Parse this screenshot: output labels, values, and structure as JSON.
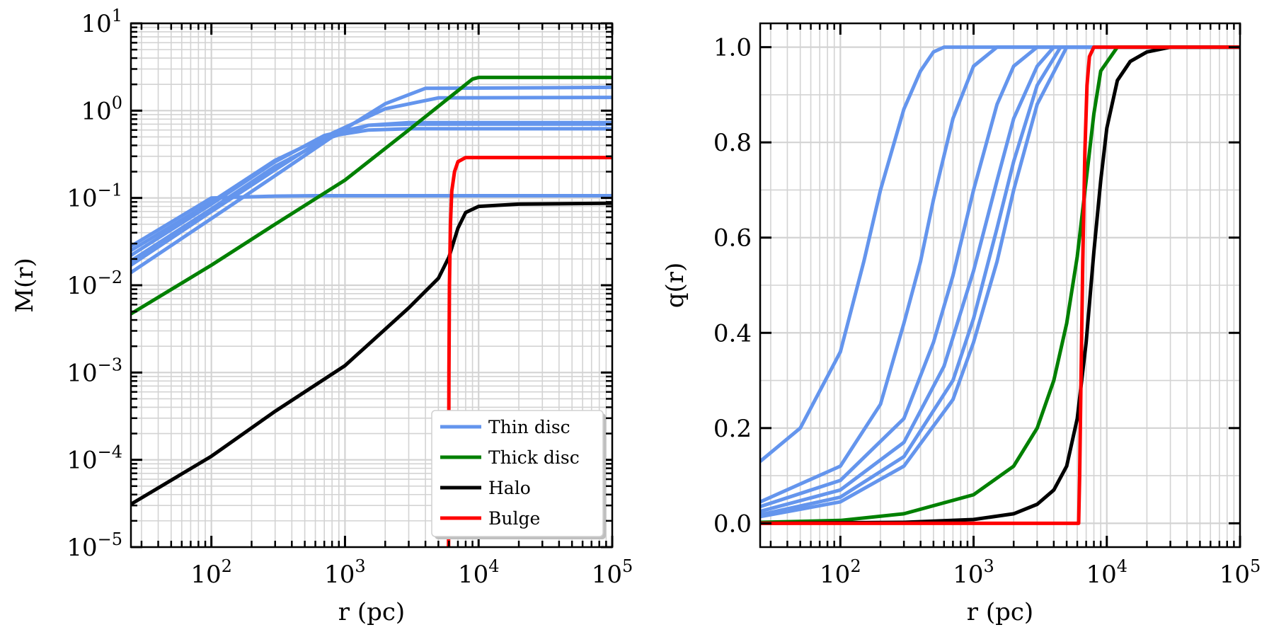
{
  "colors": {
    "thin": "#6495ed",
    "thick": "#008000",
    "halo": "#000000",
    "bulge": "#ff0000",
    "grid": "#d3d3d3"
  },
  "chart_data": [
    {
      "type": "line",
      "xlabel": "r (pc)",
      "ylabel": "M(r)",
      "xscale": "log",
      "yscale": "log",
      "xlim": [
        25,
        100000
      ],
      "ylim": [
        1e-05,
        10
      ],
      "grid": true,
      "x_tick_labels": [
        {
          "value": 100,
          "base": "10",
          "exp": "2"
        },
        {
          "value": 1000,
          "base": "10",
          "exp": "3"
        },
        {
          "value": 10000,
          "base": "10",
          "exp": "4"
        },
        {
          "value": 100000,
          "base": "10",
          "exp": "5"
        }
      ],
      "y_tick_labels": [
        {
          "value": 1e-05,
          "base": "10",
          "exp": "−5"
        },
        {
          "value": 0.0001,
          "base": "10",
          "exp": "−4"
        },
        {
          "value": 0.001,
          "base": "10",
          "exp": "−3"
        },
        {
          "value": 0.01,
          "base": "10",
          "exp": "−2"
        },
        {
          "value": 0.1,
          "base": "10",
          "exp": "−1"
        },
        {
          "value": 1,
          "base": "10",
          "exp": "0"
        },
        {
          "value": 10,
          "base": "10",
          "exp": "1"
        }
      ],
      "legend": {
        "position": "lower right",
        "entries": [
          {
            "label": "Thin disc",
            "color": "#6495ed"
          },
          {
            "label": "Thick disc",
            "color": "#008000"
          },
          {
            "label": "Halo",
            "color": "#000000"
          },
          {
            "label": "Bulge",
            "color": "#ff0000"
          }
        ]
      },
      "series": [
        {
          "group": "thin",
          "color": "#6495ed",
          "x": [
            25,
            100,
            300,
            600,
            1000,
            100000
          ],
          "y": [
            0.028,
            0.1,
            0.105,
            0.106,
            0.106,
            0.106
          ]
        },
        {
          "group": "thin",
          "color": "#6495ed",
          "x": [
            25,
            100,
            300,
            700,
            1500,
            3000,
            100000
          ],
          "y": [
            0.025,
            0.09,
            0.27,
            0.5,
            0.6,
            0.62,
            0.62
          ]
        },
        {
          "group": "thin",
          "color": "#6495ed",
          "x": [
            25,
            100,
            300,
            700,
            1500,
            3000,
            100000
          ],
          "y": [
            0.022,
            0.085,
            0.26,
            0.52,
            0.68,
            0.7,
            0.7
          ]
        },
        {
          "group": "thin",
          "color": "#6495ed",
          "x": [
            25,
            100,
            300,
            800,
            1500,
            3000,
            100000
          ],
          "y": [
            0.019,
            0.075,
            0.23,
            0.5,
            0.68,
            0.73,
            0.73
          ]
        },
        {
          "group": "thin",
          "color": "#6495ed",
          "x": [
            25,
            100,
            300,
            800,
            2000,
            5000,
            100000
          ],
          "y": [
            0.017,
            0.07,
            0.21,
            0.55,
            1.05,
            1.4,
            1.42
          ]
        },
        {
          "group": "thin",
          "color": "#6495ed",
          "x": [
            25,
            100,
            300,
            800,
            2000,
            4000,
            100000
          ],
          "y": [
            0.014,
            0.058,
            0.18,
            0.5,
            1.2,
            1.8,
            1.85
          ]
        },
        {
          "group": "thick",
          "color": "#008000",
          "x": [
            25,
            100,
            300,
            1000,
            3000,
            9000,
            10000,
            100000
          ],
          "y": [
            0.0047,
            0.017,
            0.05,
            0.16,
            0.6,
            2.3,
            2.4,
            2.4
          ]
        },
        {
          "group": "halo",
          "color": "#000000",
          "x": [
            25,
            100,
            300,
            1000,
            3000,
            5000,
            6000,
            7000,
            8000,
            10000,
            20000,
            100000
          ],
          "y": [
            3.1e-05,
            0.00011,
            0.00036,
            0.0012,
            0.0055,
            0.012,
            0.021,
            0.045,
            0.068,
            0.08,
            0.085,
            0.087
          ]
        },
        {
          "group": "bulge",
          "color": "#ff0000",
          "x": [
            5950,
            6000,
            6050,
            6150,
            6300,
            6600,
            7000,
            8000,
            100000
          ],
          "y": [
            7e-06,
            0.001,
            0.01,
            0.05,
            0.12,
            0.2,
            0.26,
            0.29,
            0.29
          ]
        }
      ]
    },
    {
      "type": "line",
      "xlabel": "r (pc)",
      "ylabel": "q(r)",
      "xscale": "log",
      "yscale": "linear",
      "xlim": [
        25,
        100000
      ],
      "ylim": [
        -0.05,
        1.05
      ],
      "grid": true,
      "x_tick_labels": [
        {
          "value": 100,
          "base": "10",
          "exp": "2"
        },
        {
          "value": 1000,
          "base": "10",
          "exp": "3"
        },
        {
          "value": 10000,
          "base": "10",
          "exp": "4"
        },
        {
          "value": 100000,
          "base": "10",
          "exp": "5"
        }
      ],
      "y_tick_labels": [
        {
          "value": 0.0,
          "text": "0.0"
        },
        {
          "value": 0.2,
          "text": "0.2"
        },
        {
          "value": 0.4,
          "text": "0.4"
        },
        {
          "value": 0.6,
          "text": "0.6"
        },
        {
          "value": 0.8,
          "text": "0.8"
        },
        {
          "value": 1.0,
          "text": "1.0"
        }
      ],
      "series": [
        {
          "group": "thin",
          "color": "#6495ed",
          "x": [
            25,
            50,
            100,
            150,
            200,
            300,
            400,
            500,
            600,
            800,
            100000
          ],
          "y": [
            0.13,
            0.2,
            0.36,
            0.55,
            0.7,
            0.87,
            0.95,
            0.99,
            1.0,
            1.0,
            1.0
          ]
        },
        {
          "group": "thin",
          "color": "#6495ed",
          "x": [
            25,
            100,
            200,
            300,
            400,
            500,
            700,
            1000,
            1500,
            100000
          ],
          "y": [
            0.045,
            0.12,
            0.25,
            0.42,
            0.55,
            0.68,
            0.85,
            0.96,
            1.0,
            1.0
          ]
        },
        {
          "group": "thin",
          "color": "#6495ed",
          "x": [
            25,
            100,
            300,
            500,
            700,
            1000,
            1500,
            2000,
            3000,
            100000
          ],
          "y": [
            0.035,
            0.09,
            0.22,
            0.38,
            0.52,
            0.7,
            0.88,
            0.96,
            1.0,
            1.0
          ]
        },
        {
          "group": "thin",
          "color": "#6495ed",
          "x": [
            25,
            100,
            300,
            600,
            1000,
            1500,
            2000,
            3000,
            4000,
            100000
          ],
          "y": [
            0.025,
            0.07,
            0.17,
            0.33,
            0.53,
            0.72,
            0.85,
            0.96,
            1.0,
            1.0
          ]
        },
        {
          "group": "thin",
          "color": "#6495ed",
          "x": [
            25,
            100,
            300,
            700,
            1000,
            1500,
            2000,
            3000,
            4500,
            100000
          ],
          "y": [
            0.018,
            0.055,
            0.14,
            0.3,
            0.43,
            0.62,
            0.76,
            0.92,
            1.0,
            1.0
          ]
        },
        {
          "group": "thin",
          "color": "#6495ed",
          "x": [
            25,
            100,
            300,
            700,
            1000,
            1500,
            2000,
            3000,
            5000,
            100000
          ],
          "y": [
            0.014,
            0.045,
            0.12,
            0.26,
            0.38,
            0.55,
            0.7,
            0.88,
            1.0,
            1.0
          ]
        },
        {
          "group": "thick",
          "color": "#008000",
          "x": [
            25,
            100,
            300,
            1000,
            2000,
            3000,
            4000,
            5000,
            6000,
            7000,
            8000,
            9000,
            12000,
            100000
          ],
          "y": [
            0.002,
            0.006,
            0.02,
            0.06,
            0.12,
            0.2,
            0.3,
            0.42,
            0.56,
            0.72,
            0.86,
            0.95,
            1.0,
            1.0
          ]
        },
        {
          "group": "halo",
          "color": "#000000",
          "x": [
            25,
            300,
            1000,
            2000,
            3000,
            4000,
            5000,
            6000,
            7000,
            8000,
            9000,
            10000,
            12000,
            15000,
            20000,
            30000,
            100000
          ],
          "y": [
            0.0,
            0.002,
            0.008,
            0.02,
            0.04,
            0.07,
            0.12,
            0.22,
            0.38,
            0.57,
            0.72,
            0.83,
            0.93,
            0.97,
            0.99,
            1.0,
            1.0
          ]
        },
        {
          "group": "bulge",
          "color": "#ff0000",
          "x": [
            25,
            6150,
            6250,
            6400,
            6600,
            6850,
            7100,
            7400,
            8000,
            100000
          ],
          "y": [
            0.0,
            0.0,
            0.1,
            0.3,
            0.55,
            0.78,
            0.92,
            0.98,
            1.0,
            1.0
          ]
        }
      ]
    }
  ]
}
